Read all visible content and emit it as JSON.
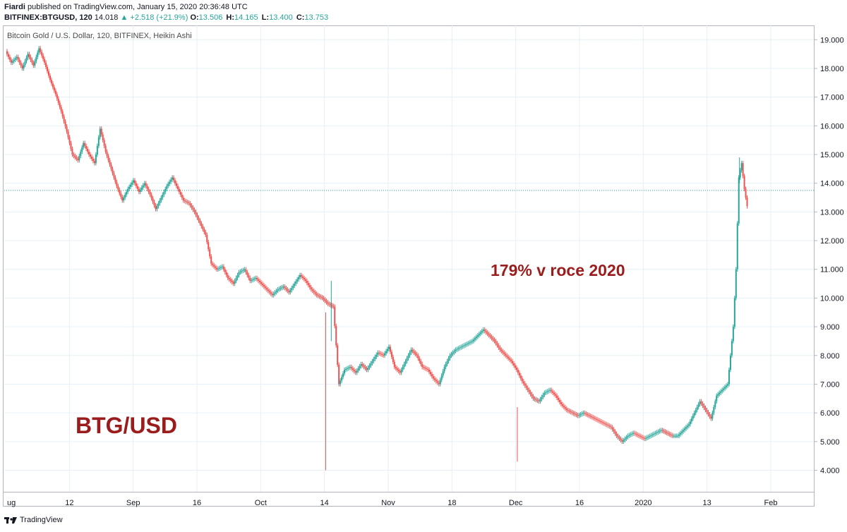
{
  "header": {
    "author": "Fiardi",
    "published_text": "published on TradingView.com, January 15, 2020 20:36:48 UTC",
    "symbol": "BITFINEX:BTGUSD, 120",
    "last_price": "14.018",
    "change": "+2.518 (+21.9%)",
    "open_label": "O:",
    "open_value": "13.506",
    "high_label": "H:",
    "high_value": "14.165",
    "low_label": "L:",
    "low_value": "13.400",
    "close_label": "C:",
    "close_value": "13.753"
  },
  "footer": {
    "brand": "TradingView"
  },
  "colors": {
    "up": "#26a69a",
    "down": "#ef5350",
    "grid": "#e6f0f6",
    "annotation": "#9b1c1c",
    "price_line": "#26a69a"
  },
  "chart_data": {
    "type": "candlestick",
    "title": "Bitcoin Gold / U.S. Dollar, 120, BITFINEX, Heikin Ashi",
    "ylim": [
      3.3,
      19.4
    ],
    "y_ticks": [
      "19.000",
      "18.000",
      "17.000",
      "16.000",
      "15.000",
      "14.000",
      "13.000",
      "12.000",
      "11.000",
      "10.000",
      "9.000",
      "8.000",
      "7.000",
      "6.000",
      "5.000",
      "4.000"
    ],
    "x_ticks": [
      "ug",
      "12",
      "Sep",
      "16",
      "Oct",
      "14",
      "Nov",
      "18",
      "Dec",
      "16",
      "2020",
      "13",
      "Feb"
    ],
    "last_price_line": 13.75,
    "annotations": [
      "BTG/USD",
      "179% v roce 2020"
    ],
    "series": [
      {
        "values": [
          [
            0,
            18.6
          ],
          [
            2,
            18.2
          ],
          [
            4,
            18.4
          ],
          [
            6,
            18.0
          ],
          [
            8,
            18.5
          ],
          [
            10,
            18.1
          ],
          [
            12,
            18.7
          ],
          [
            14,
            18.2
          ],
          [
            16,
            17.6
          ],
          [
            18,
            17.1
          ],
          [
            20,
            16.5
          ],
          [
            22,
            15.8
          ],
          [
            24,
            15.0
          ],
          [
            26,
            14.8
          ],
          [
            28,
            15.4
          ],
          [
            30,
            15.0
          ],
          [
            32,
            14.7
          ],
          [
            34,
            15.9
          ],
          [
            36,
            15.1
          ],
          [
            38,
            14.5
          ],
          [
            40,
            13.9
          ],
          [
            42,
            13.4
          ],
          [
            44,
            13.8
          ],
          [
            46,
            14.1
          ],
          [
            48,
            13.7
          ],
          [
            50,
            14.0
          ],
          [
            52,
            13.6
          ],
          [
            54,
            13.1
          ],
          [
            56,
            13.5
          ],
          [
            58,
            13.9
          ],
          [
            60,
            14.2
          ],
          [
            62,
            13.8
          ],
          [
            64,
            13.4
          ],
          [
            66,
            13.3
          ],
          [
            68,
            13.0
          ],
          [
            70,
            12.6
          ],
          [
            72,
            12.2
          ],
          [
            74,
            11.2
          ],
          [
            76,
            11.0
          ],
          [
            78,
            11.1
          ],
          [
            80,
            10.7
          ],
          [
            82,
            10.5
          ],
          [
            84,
            10.9
          ],
          [
            86,
            11.0
          ],
          [
            88,
            10.6
          ],
          [
            90,
            10.7
          ],
          [
            92,
            10.5
          ],
          [
            94,
            10.3
          ],
          [
            96,
            10.1
          ],
          [
            98,
            10.3
          ],
          [
            100,
            10.4
          ],
          [
            102,
            10.2
          ],
          [
            104,
            10.5
          ],
          [
            106,
            10.8
          ],
          [
            108,
            10.6
          ],
          [
            110,
            10.3
          ],
          [
            112,
            10.1
          ],
          [
            114,
            10.0
          ],
          [
            116,
            9.8
          ],
          [
            118,
            9.7
          ],
          [
            120,
            7.0
          ],
          [
            122,
            7.5
          ],
          [
            124,
            7.6
          ],
          [
            126,
            7.4
          ],
          [
            128,
            7.7
          ],
          [
            130,
            7.5
          ],
          [
            132,
            7.8
          ],
          [
            134,
            8.1
          ],
          [
            136,
            8.0
          ],
          [
            138,
            8.3
          ],
          [
            140,
            7.6
          ],
          [
            142,
            7.4
          ],
          [
            144,
            7.8
          ],
          [
            146,
            8.2
          ],
          [
            148,
            8.0
          ],
          [
            150,
            7.6
          ],
          [
            152,
            7.5
          ],
          [
            154,
            7.2
          ],
          [
            156,
            7.0
          ],
          [
            158,
            7.6
          ],
          [
            160,
            8.0
          ],
          [
            162,
            8.2
          ],
          [
            164,
            8.3
          ],
          [
            166,
            8.4
          ],
          [
            168,
            8.5
          ],
          [
            170,
            8.7
          ],
          [
            172,
            8.9
          ],
          [
            174,
            8.7
          ],
          [
            176,
            8.5
          ],
          [
            178,
            8.2
          ],
          [
            180,
            8.0
          ],
          [
            182,
            7.8
          ],
          [
            184,
            7.5
          ],
          [
            186,
            7.1
          ],
          [
            188,
            6.8
          ],
          [
            190,
            6.5
          ],
          [
            192,
            6.4
          ],
          [
            194,
            6.7
          ],
          [
            196,
            6.8
          ],
          [
            198,
            6.6
          ],
          [
            200,
            6.3
          ],
          [
            202,
            6.1
          ],
          [
            204,
            6.0
          ],
          [
            206,
            5.9
          ],
          [
            208,
            6.0
          ],
          [
            210,
            5.9
          ],
          [
            212,
            5.8
          ],
          [
            214,
            5.7
          ],
          [
            216,
            5.6
          ],
          [
            218,
            5.5
          ],
          [
            220,
            5.2
          ],
          [
            222,
            5.0
          ],
          [
            224,
            5.2
          ],
          [
            226,
            5.3
          ],
          [
            228,
            5.2
          ],
          [
            230,
            5.1
          ],
          [
            232,
            5.2
          ],
          [
            234,
            5.3
          ],
          [
            236,
            5.4
          ],
          [
            238,
            5.3
          ],
          [
            240,
            5.2
          ],
          [
            242,
            5.2
          ],
          [
            244,
            5.4
          ],
          [
            246,
            5.6
          ],
          [
            248,
            6.0
          ],
          [
            250,
            6.4
          ],
          [
            252,
            6.1
          ],
          [
            254,
            5.8
          ],
          [
            256,
            6.6
          ],
          [
            258,
            6.8
          ],
          [
            260,
            7.0
          ],
          [
            261,
            8.0
          ],
          [
            262,
            9.0
          ],
          [
            263,
            11.0
          ],
          [
            264,
            14.2
          ],
          [
            265,
            14.7
          ],
          [
            266,
            13.8
          ],
          [
            267,
            13.2
          ]
        ]
      }
    ],
    "wicks": [
      [
        115,
        9.5,
        4.0
      ],
      [
        117,
        8.5,
        10.6
      ],
      [
        184,
        6.2,
        4.3
      ],
      [
        264,
        14.0,
        14.9
      ]
    ]
  }
}
